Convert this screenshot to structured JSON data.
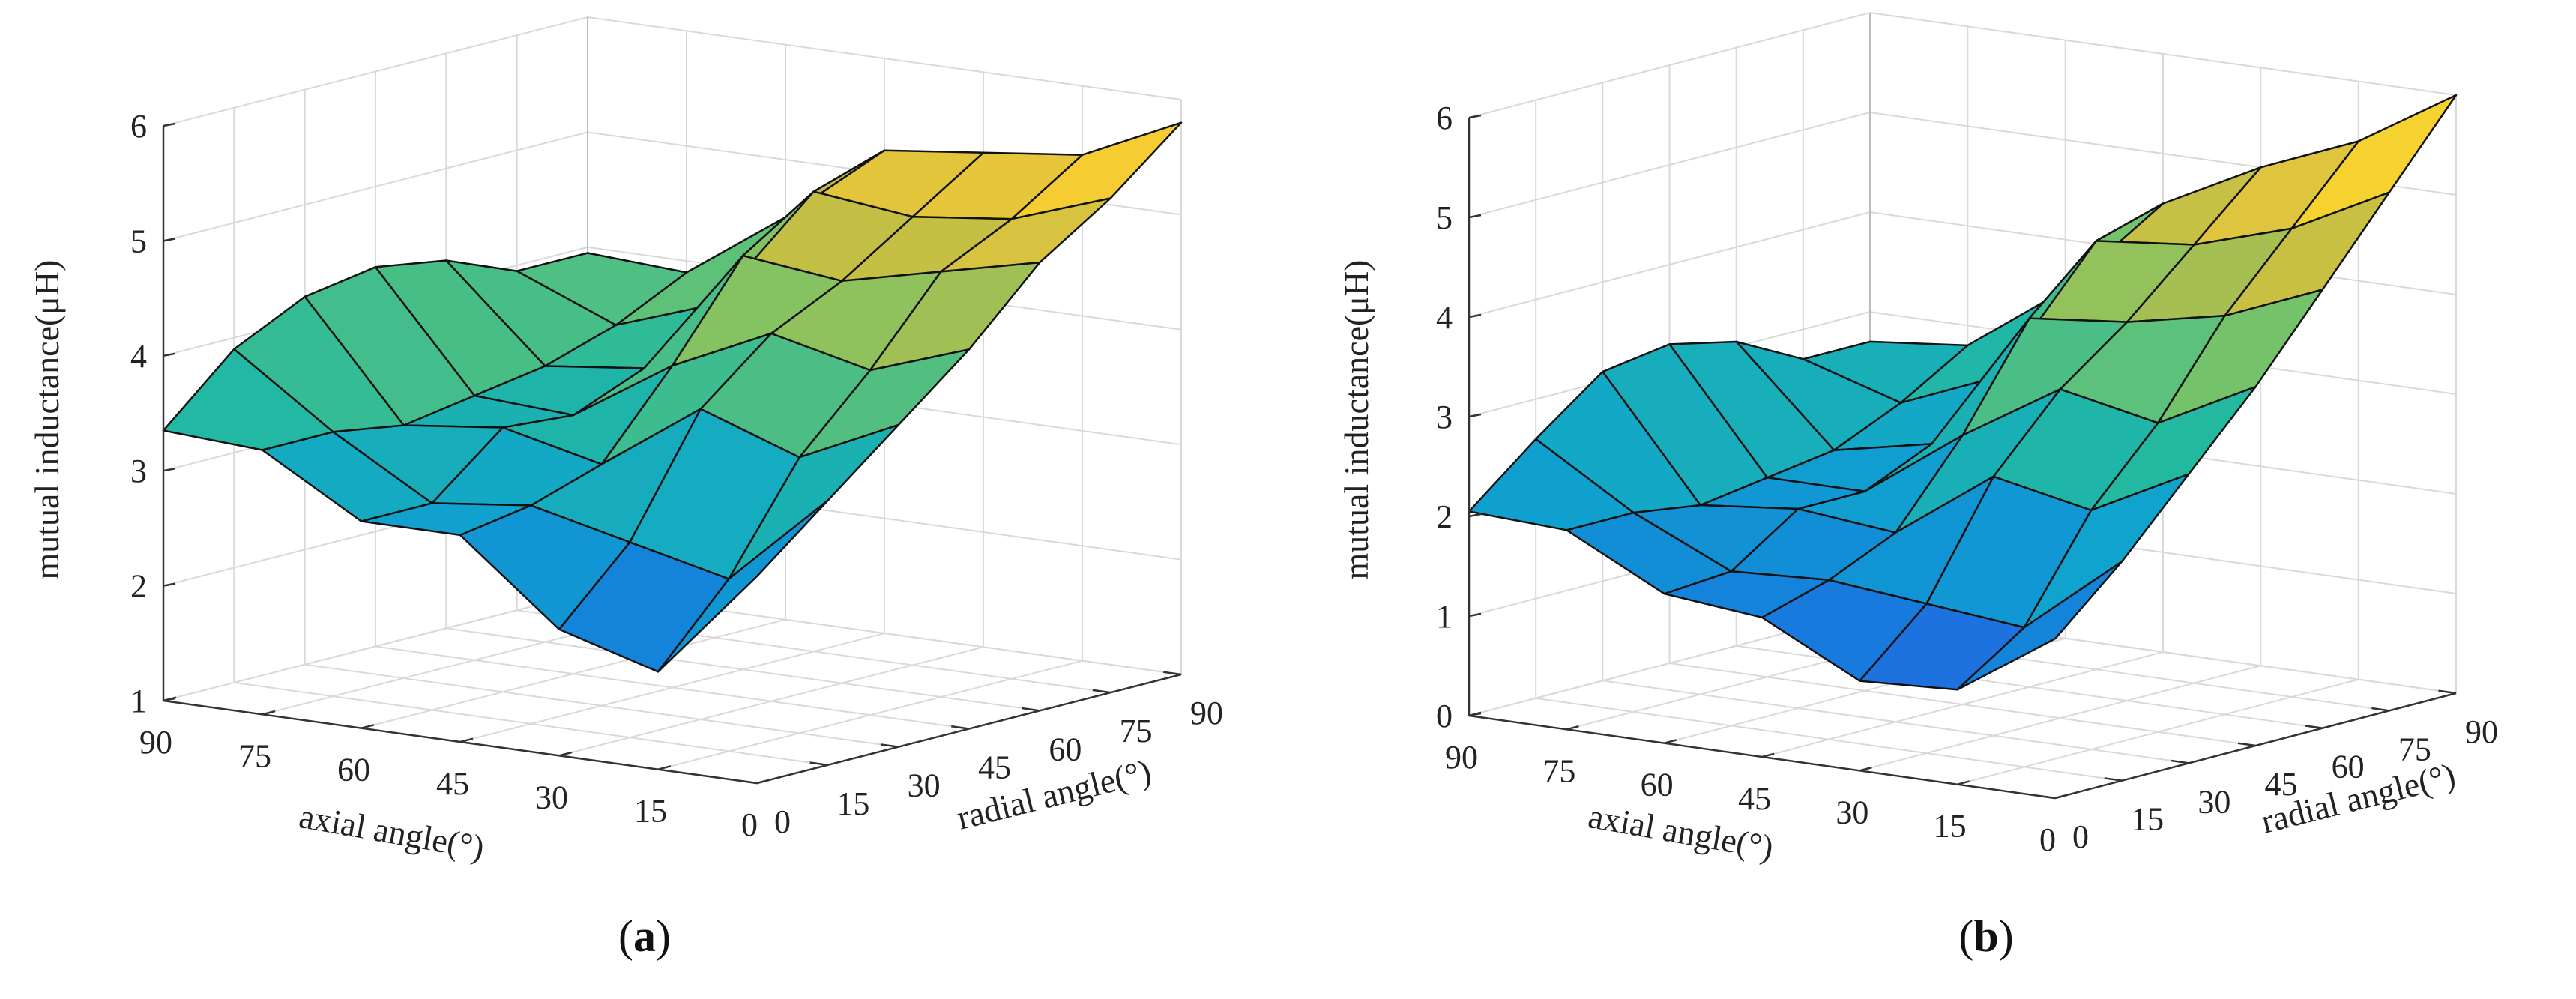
{
  "chart_data": [
    {
      "type": "surface",
      "panel_label": "a",
      "zlabel": "mutual inductance(μH)",
      "xlabel": "axial angle(°)",
      "ylabel": "radial angle(°)",
      "zlim": [
        1,
        6
      ],
      "z_ticks": [
        "1",
        "2",
        "3",
        "4",
        "5",
        "6"
      ],
      "x_ticks": [
        "90",
        "75",
        "60",
        "45",
        "30",
        "15",
        "0"
      ],
      "y_ticks": [
        "0",
        "15",
        "30",
        "45",
        "60",
        "75",
        "90"
      ],
      "axial": [
        90,
        75,
        60,
        45,
        30,
        15,
        0
      ],
      "radial": [
        0,
        15,
        30,
        45,
        60,
        75,
        90
      ],
      "z": [
        [
          3.35,
          3.9,
          4.2,
          4.3,
          4.2,
          3.95,
          3.95
        ],
        [
          3.3,
          3.3,
          3.2,
          3.3,
          3.4,
          3.6,
          3.9
        ],
        [
          2.8,
          2.8,
          3.3,
          3.25,
          3.5,
          3.9,
          4.5
        ],
        [
          2.8,
          2.9,
          3.1,
          3.8,
          4.6,
          5.0,
          5.2
        ],
        [
          2.1,
          2.7,
          3.7,
          4.2,
          4.5,
          4.9,
          5.3
        ],
        [
          1.85,
          2.5,
          3.4,
          4.0,
          4.7,
          5.0,
          5.4
        ],
        [
          2.8,
          3.3,
          3.8,
          4.3,
          4.9,
          5.3,
          5.8
        ]
      ]
    },
    {
      "type": "surface",
      "panel_label": "b",
      "zlabel": "mutual inductance(μH)",
      "xlabel": "axial angle(°)",
      "ylabel": "radial angle(°)",
      "zlim": [
        0,
        6
      ],
      "z_ticks": [
        "0",
        "1",
        "2",
        "3",
        "4",
        "5",
        "6"
      ],
      "x_ticks": [
        "90",
        "75",
        "60",
        "45",
        "30",
        "15",
        "0"
      ],
      "y_ticks": [
        "0",
        "15",
        "30",
        "45",
        "60",
        "75",
        "90"
      ],
      "axial": [
        90,
        75,
        60,
        45,
        30,
        15,
        0
      ],
      "radial": [
        0,
        15,
        30,
        45,
        60,
        75,
        90
      ],
      "z": [
        [
          2.05,
          2.6,
          3.1,
          3.2,
          3.05,
          2.7,
          2.7
        ],
        [
          2.0,
          2.0,
          1.9,
          2.0,
          2.1,
          2.4,
          2.8
        ],
        [
          1.5,
          1.55,
          2.0,
          2.0,
          2.3,
          2.8,
          3.5
        ],
        [
          1.4,
          1.6,
          1.9,
          2.7,
          3.7,
          4.3,
          4.5
        ],
        [
          0.9,
          1.5,
          2.6,
          3.3,
          3.8,
          4.4,
          5.0
        ],
        [
          0.95,
          1.4,
          2.4,
          3.1,
          4.0,
          4.7,
          5.4
        ],
        [
          1.6,
          2.2,
          2.9,
          3.6,
          4.4,
          5.2,
          6.0
        ]
      ]
    }
  ]
}
